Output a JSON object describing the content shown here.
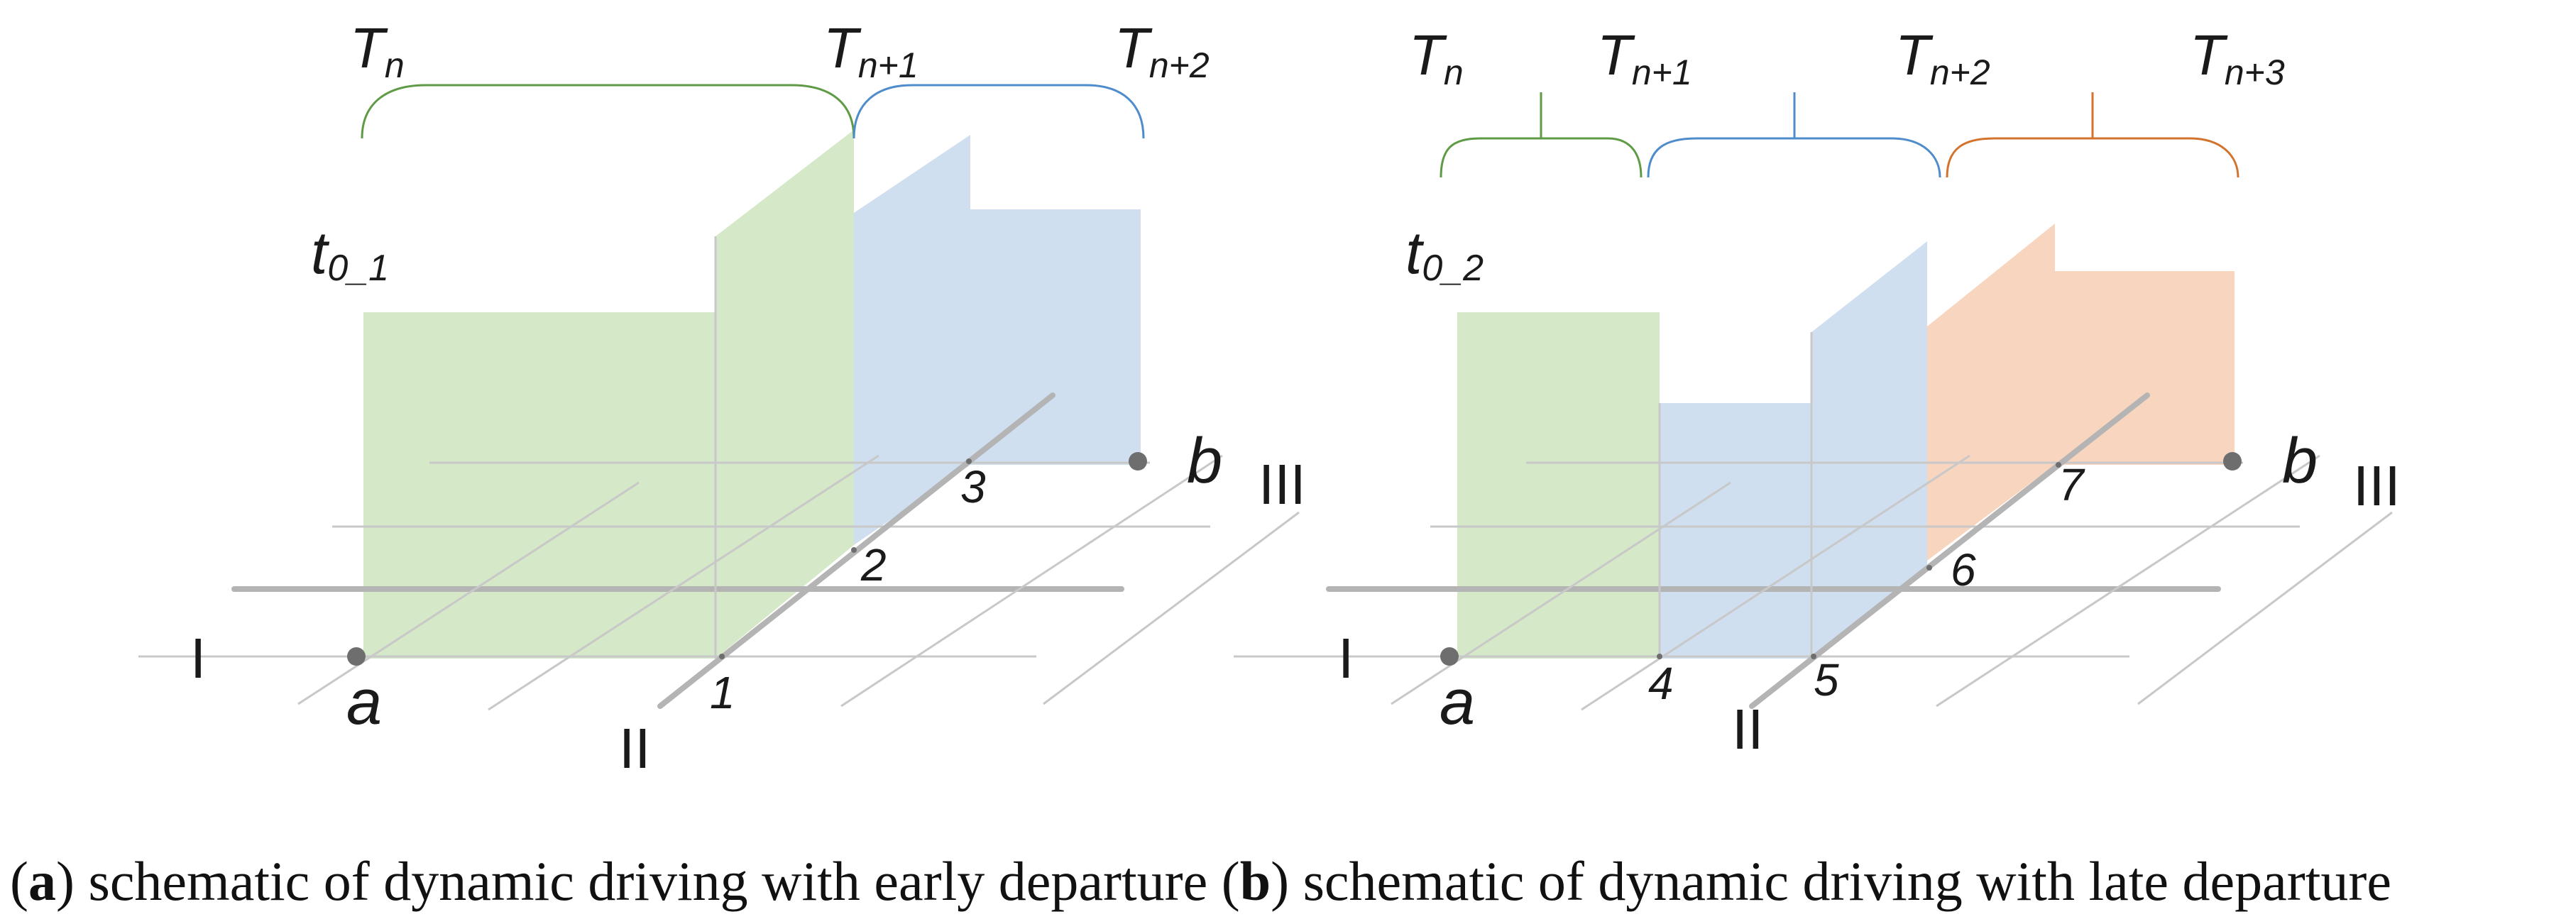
{
  "colors": {
    "green_fill": "#d5e8c8",
    "blue_fill": "#cfdff0",
    "orange_fill": "#f8d5bf",
    "green_line": "#5f9a45",
    "blue_line": "#4f8ccc",
    "orange_line": "#d2732e",
    "grid_line": "#c8c8c8",
    "road_line": "#b4b4b4",
    "dot": "#6e6e6e"
  },
  "panel_a": {
    "periods": [
      "T",
      "T",
      "T"
    ],
    "period_subs": [
      "n",
      "n+1",
      "n+2"
    ],
    "start_label_main": "t",
    "start_label_sub": "0_1",
    "route_labels": [
      "I",
      "II",
      "III"
    ],
    "point_labels": [
      "a",
      "b"
    ],
    "node_labels": [
      "1",
      "2",
      "3"
    ]
  },
  "panel_b": {
    "periods": [
      "T",
      "T",
      "T",
      "T"
    ],
    "period_subs": [
      "n",
      "n+1",
      "n+2",
      "n+3"
    ],
    "start_label_main": "t",
    "start_label_sub": "0_2",
    "route_labels": [
      "I",
      "II",
      "III"
    ],
    "point_labels": [
      "a",
      "b"
    ],
    "node_labels": [
      "4",
      "5",
      "6",
      "7"
    ]
  },
  "caption": {
    "a_open": "(",
    "a_letter": "a",
    "a_text": ") schematic of dynamic driving with early departure (",
    "b_letter": "b",
    "b_text": ") schematic of dynamic driving with late departure"
  }
}
